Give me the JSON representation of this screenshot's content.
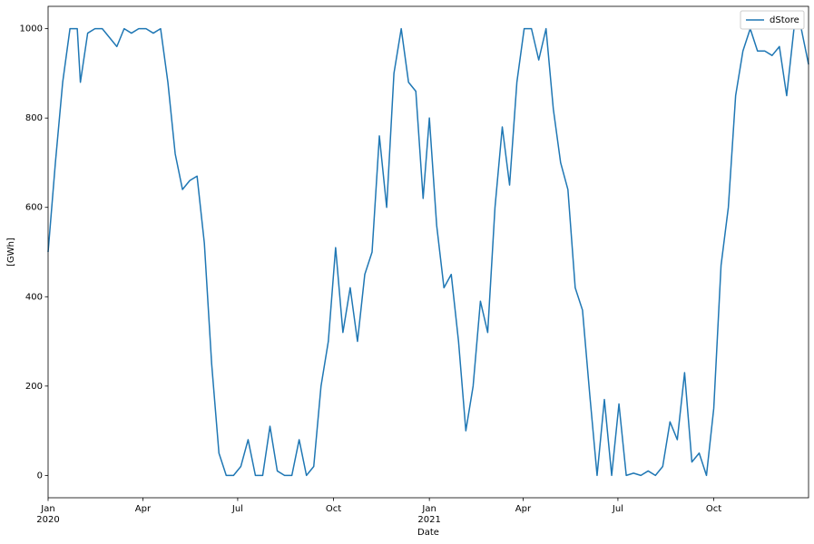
{
  "chart_data": {
    "type": "line",
    "x_label": "Date",
    "y_label": "[GWh]",
    "xlim": [
      "2020-01-01",
      "2021-12-31"
    ],
    "xticks": [
      {
        "value": "2020-01-01",
        "label": "Jan\n2020"
      },
      {
        "value": "2020-04-01",
        "label": "Apr"
      },
      {
        "value": "2020-07-01",
        "label": "Jul"
      },
      {
        "value": "2020-10-01",
        "label": "Oct"
      },
      {
        "value": "2021-01-01",
        "label": "Jan\n2021"
      },
      {
        "value": "2021-04-01",
        "label": "Apr"
      },
      {
        "value": "2021-07-01",
        "label": "Jul"
      },
      {
        "value": "2021-10-01",
        "label": "Oct"
      }
    ],
    "ylim": [
      -50,
      1050
    ],
    "yticks": [
      0,
      200,
      400,
      600,
      800,
      1000
    ],
    "grid": false,
    "legend": "upper right",
    "x": [
      "2020-01-01",
      "2020-01-08",
      "2020-01-15",
      "2020-01-22",
      "2020-01-29",
      "2020-02-01",
      "2020-02-08",
      "2020-02-15",
      "2020-02-22",
      "2020-02-29",
      "2020-03-07",
      "2020-03-14",
      "2020-03-21",
      "2020-03-28",
      "2020-04-04",
      "2020-04-11",
      "2020-04-18",
      "2020-04-25",
      "2020-05-02",
      "2020-05-09",
      "2020-05-16",
      "2020-05-23",
      "2020-05-30",
      "2020-06-06",
      "2020-06-13",
      "2020-06-20",
      "2020-06-27",
      "2020-07-04",
      "2020-07-11",
      "2020-07-18",
      "2020-07-25",
      "2020-08-01",
      "2020-08-08",
      "2020-08-15",
      "2020-08-22",
      "2020-08-29",
      "2020-09-05",
      "2020-09-12",
      "2020-09-19",
      "2020-09-26",
      "2020-10-03",
      "2020-10-10",
      "2020-10-17",
      "2020-10-24",
      "2020-10-31",
      "2020-11-07",
      "2020-11-14",
      "2020-11-21",
      "2020-11-28",
      "2020-12-05",
      "2020-12-12",
      "2020-12-19",
      "2020-12-26",
      "2021-01-01",
      "2021-01-08",
      "2021-01-15",
      "2021-01-22",
      "2021-01-29",
      "2021-02-05",
      "2021-02-12",
      "2021-02-19",
      "2021-02-26",
      "2021-03-05",
      "2021-03-12",
      "2021-03-19",
      "2021-03-26",
      "2021-04-02",
      "2021-04-09",
      "2021-04-16",
      "2021-04-23",
      "2021-04-30",
      "2021-05-07",
      "2021-05-14",
      "2021-05-21",
      "2021-05-28",
      "2021-06-04",
      "2021-06-11",
      "2021-06-18",
      "2021-06-25",
      "2021-07-02",
      "2021-07-09",
      "2021-07-16",
      "2021-07-23",
      "2021-07-30",
      "2021-08-06",
      "2021-08-13",
      "2021-08-20",
      "2021-08-27",
      "2021-09-03",
      "2021-09-10",
      "2021-09-17",
      "2021-09-24",
      "2021-10-01",
      "2021-10-08",
      "2021-10-15",
      "2021-10-22",
      "2021-10-29",
      "2021-11-05",
      "2021-11-12",
      "2021-11-19",
      "2021-11-26",
      "2021-12-03",
      "2021-12-10",
      "2021-12-17",
      "2021-12-24",
      "2021-12-31"
    ],
    "series": [
      {
        "name": "dStore",
        "color": "#1f77b4",
        "values": [
          500,
          700,
          880,
          1000,
          1000,
          880,
          990,
          1000,
          1000,
          980,
          960,
          1000,
          990,
          1000,
          1000,
          990,
          1000,
          880,
          720,
          640,
          660,
          670,
          520,
          250,
          50,
          0,
          0,
          20,
          80,
          0,
          0,
          110,
          10,
          0,
          0,
          80,
          0,
          20,
          200,
          300,
          510,
          320,
          420,
          300,
          450,
          500,
          760,
          600,
          900,
          1000,
          880,
          860,
          620,
          800,
          560,
          420,
          450,
          300,
          100,
          200,
          390,
          320,
          600,
          780,
          650,
          880,
          1000,
          1000,
          930,
          1000,
          820,
          700,
          640,
          420,
          370,
          180,
          0,
          170,
          0,
          160,
          0,
          5,
          0,
          10,
          0,
          20,
          120,
          80,
          230,
          30,
          50,
          0,
          150,
          470,
          600,
          850,
          950,
          1000,
          950,
          950,
          940,
          960,
          850,
          1000,
          1000,
          920
        ]
      }
    ]
  }
}
